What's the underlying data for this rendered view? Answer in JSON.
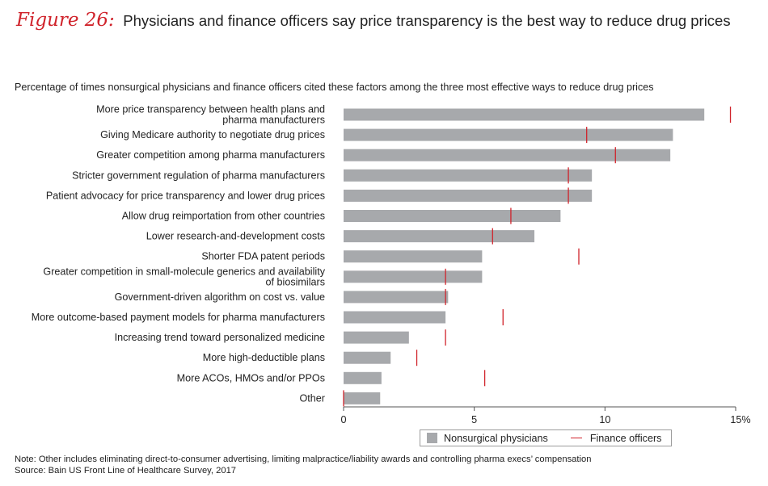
{
  "figure": {
    "label": "Figure 26:",
    "title": "Physicians and finance officers say price transparency is the best way to reduce drug prices",
    "subtitle": "Percentage of times nonsurgical physicians and finance officers cited these factors among the three most effective ways to reduce drug prices"
  },
  "legend": {
    "physicians": "Nonsurgical physicians",
    "finance": "Finance officers"
  },
  "footnote": {
    "note": "Note: Other includes eliminating direct-to-consumer advertising, limiting malpractice/liability awards and controlling pharma execs’ compensation",
    "source": "Source: Bain US Front Line of Healthcare Survey, 2017"
  },
  "colors": {
    "bar": "#a7a9ac",
    "marker": "#d0232b",
    "axis": "#555555",
    "accent": "#d0232b"
  },
  "chart_data": {
    "type": "bar",
    "orientation": "horizontal",
    "categories": [
      [
        "More price transparency between health plans and",
        "pharma manufacturers"
      ],
      [
        "Giving Medicare authority to negotiate drug prices"
      ],
      [
        "Greater competition among pharma manufacturers"
      ],
      [
        "Stricter government regulation of pharma manufacturers"
      ],
      [
        "Patient advocacy for price transparency and lower drug prices"
      ],
      [
        "Allow drug reimportation from other countries"
      ],
      [
        "Lower research-and-development costs"
      ],
      [
        "Shorter FDA patent periods"
      ],
      [
        "Greater competition in small-molecule generics and availability",
        "of biosimilars"
      ],
      [
        "Government-driven algorithm on cost vs. value"
      ],
      [
        "More outcome-based payment models for pharma manufacturers"
      ],
      [
        "Increasing trend toward personalized medicine"
      ],
      [
        "More high-deductible plans"
      ],
      [
        "More ACOs, HMOs and/or PPOs"
      ],
      [
        "Other"
      ]
    ],
    "series": [
      {
        "name": "Nonsurgical physicians",
        "kind": "bar",
        "values": [
          13.8,
          12.6,
          12.5,
          9.5,
          9.5,
          8.3,
          7.3,
          5.3,
          5.3,
          4.0,
          3.9,
          2.5,
          1.8,
          1.45,
          1.4
        ]
      },
      {
        "name": "Finance officers",
        "kind": "marker",
        "values": [
          14.8,
          9.3,
          10.4,
          8.6,
          8.6,
          6.4,
          5.7,
          9.0,
          3.9,
          3.9,
          6.1,
          3.9,
          2.8,
          5.4,
          0.0
        ]
      }
    ],
    "xlim": [
      0,
      15
    ],
    "xticks": [
      {
        "value": 0,
        "label": "0"
      },
      {
        "value": 5,
        "label": "5"
      },
      {
        "value": 10,
        "label": "10"
      },
      {
        "value": 15,
        "label": "15%"
      }
    ],
    "grid": false,
    "legend_position": "bottom"
  }
}
